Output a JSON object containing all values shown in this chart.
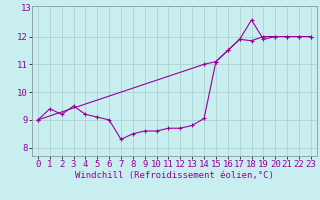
{
  "xlabel": "Windchill (Refroidissement éolien,°C)",
  "background_color": "#c8eef0",
  "grid_color": "#aacccc",
  "line_color": "#990099",
  "xlim": [
    -0.5,
    23.5
  ],
  "ylim": [
    7.7,
    13.1
  ],
  "yticks": [
    8,
    9,
    10,
    11,
    12
  ],
  "xticks": [
    0,
    1,
    2,
    3,
    4,
    5,
    6,
    7,
    8,
    9,
    10,
    11,
    12,
    13,
    14,
    15,
    16,
    17,
    18,
    19,
    20,
    21,
    22,
    23
  ],
  "line1_x": [
    0,
    1,
    2,
    3,
    4,
    5,
    6,
    7,
    8,
    9,
    10,
    11,
    12,
    13,
    14,
    15,
    16,
    17,
    18,
    19,
    20,
    21,
    22,
    23
  ],
  "line1_y": [
    9.0,
    9.4,
    9.2,
    9.5,
    9.2,
    9.1,
    9.0,
    8.3,
    8.5,
    8.6,
    8.6,
    8.7,
    8.7,
    8.8,
    9.05,
    11.1,
    11.5,
    11.9,
    12.6,
    11.9,
    12.0,
    12.0,
    12.0,
    12.0
  ],
  "line2_x": [
    0,
    14,
    15,
    16,
    17,
    18,
    19,
    20,
    21,
    22,
    23
  ],
  "line2_y": [
    9.0,
    11.0,
    11.1,
    11.5,
    11.9,
    11.85,
    12.0,
    12.0,
    12.0,
    12.0,
    12.0
  ],
  "xlabel_fontsize": 6.5,
  "tick_fontsize": 6.5
}
